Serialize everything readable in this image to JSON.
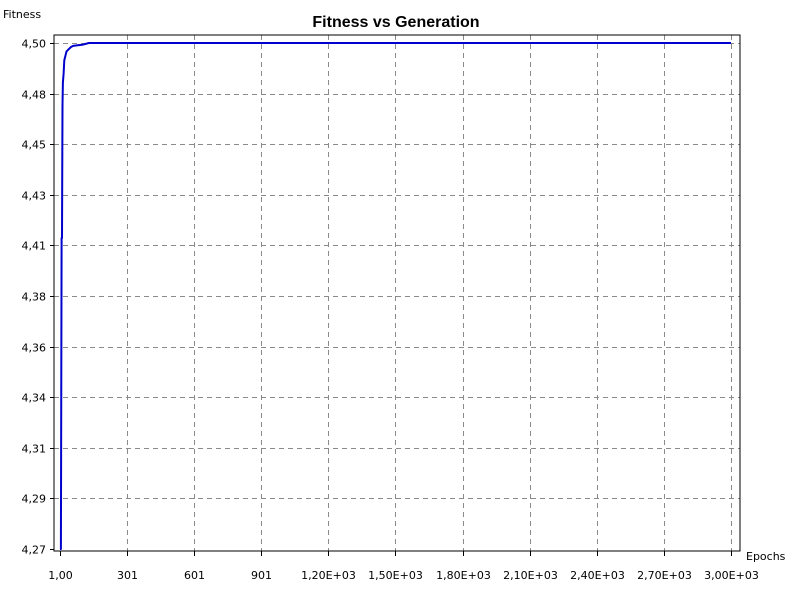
{
  "chart_data": {
    "type": "line",
    "title": "Fitness vs Generation",
    "xlabel": "Epochs",
    "ylabel": "Fitness",
    "xlim": [
      1,
      3000
    ],
    "ylim": [
      4.27,
      4.5
    ],
    "grid": true,
    "x_ticks": [
      {
        "value": 1,
        "label": "1,00"
      },
      {
        "value": 301,
        "label": "301"
      },
      {
        "value": 601,
        "label": "601"
      },
      {
        "value": 901,
        "label": "901"
      },
      {
        "value": 1200,
        "label": "1,20E+03"
      },
      {
        "value": 1500,
        "label": "1,50E+03"
      },
      {
        "value": 1800,
        "label": "1,80E+03"
      },
      {
        "value": 2100,
        "label": "2,10E+03"
      },
      {
        "value": 2400,
        "label": "2,40E+03"
      },
      {
        "value": 2700,
        "label": "2,70E+03"
      },
      {
        "value": 3000,
        "label": "3,00E+03"
      }
    ],
    "y_ticks": [
      {
        "value": 4.27,
        "label": "4,27"
      },
      {
        "value": 4.2928,
        "label": "4,29"
      },
      {
        "value": 4.3156,
        "label": "4,31"
      },
      {
        "value": 4.3383,
        "label": "4,34"
      },
      {
        "value": 4.3611,
        "label": "4,36"
      },
      {
        "value": 4.3839,
        "label": "4,38"
      },
      {
        "value": 4.4067,
        "label": "4,41"
      },
      {
        "value": 4.4294,
        "label": "4,43"
      },
      {
        "value": 4.4522,
        "label": "4,45"
      },
      {
        "value": 4.475,
        "label": "4,48"
      },
      {
        "value": 4.4978,
        "label": "4,50"
      }
    ],
    "series": [
      {
        "color": "#0000cc",
        "x": [
          1,
          5,
          8,
          10,
          12,
          14,
          17,
          20,
          25,
          30,
          40,
          50,
          60,
          80,
          100,
          130,
          200,
          400,
          1000,
          2000,
          3000
        ],
        "y": [
          4.27,
          4.27,
          4.41,
          4.41,
          4.47,
          4.48,
          4.484,
          4.49,
          4.492,
          4.494,
          4.495,
          4.496,
          4.4965,
          4.4968,
          4.497,
          4.4978,
          4.4978,
          4.4978,
          4.4978,
          4.4978,
          4.4978
        ]
      }
    ]
  }
}
